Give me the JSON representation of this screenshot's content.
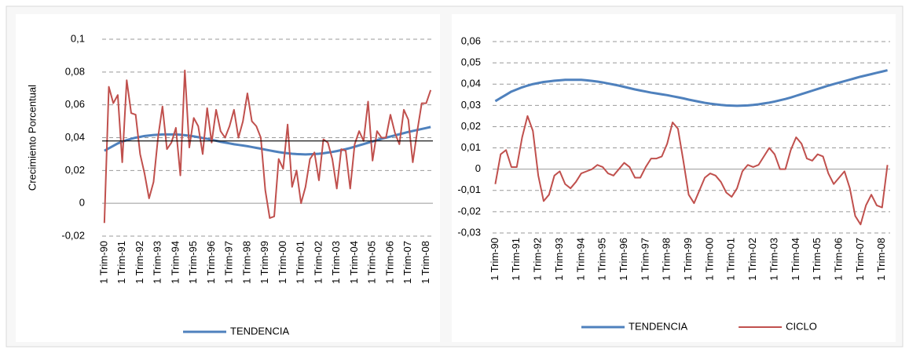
{
  "chart_data": [
    {
      "type": "line",
      "y_label": "Crecimiento Porcentual",
      "categories": [
        "1 Trim-90",
        null,
        null,
        null,
        "1 Trim-91",
        null,
        null,
        null,
        "1 Trim-92",
        null,
        null,
        null,
        "1 Trim-93",
        null,
        null,
        null,
        "1 Trim-94",
        null,
        null,
        null,
        "1 Trim-95",
        null,
        null,
        null,
        "1 Trim-96",
        null,
        null,
        null,
        "1 Trim-97",
        null,
        null,
        null,
        "1 Trim-98",
        null,
        null,
        null,
        "1 Trim-99",
        null,
        null,
        null,
        "1 Trim-00",
        null,
        null,
        null,
        "1 Trim-01",
        null,
        null,
        null,
        "1 Trim-02",
        null,
        null,
        null,
        "1 Trim-03",
        null,
        null,
        null,
        "1 Trim-04",
        null,
        null,
        null,
        "1 Trim-05",
        null,
        null,
        null,
        "1 Trim-06",
        null,
        null,
        null,
        "1 Trim-07",
        null,
        null,
        null,
        "1 Trim-08",
        null
      ],
      "series": [
        {
          "name": "TENDENCIA",
          "color": "#4f81bd",
          "values": [
            0.032,
            0.0335,
            0.035,
            0.0365,
            0.0375,
            0.0385,
            0.0393,
            0.04,
            0.0405,
            0.041,
            0.0413,
            0.0416,
            0.0418,
            0.042,
            0.042,
            0.042,
            0.042,
            0.0418,
            0.0415,
            0.0412,
            0.0408,
            0.0403,
            0.0398,
            0.0393,
            0.0387,
            0.0381,
            0.0375,
            0.037,
            0.0365,
            0.036,
            0.0356,
            0.0352,
            0.0348,
            0.0343,
            0.0338,
            0.0333,
            0.0327,
            0.0322,
            0.0317,
            0.0312,
            0.0308,
            0.0305,
            0.0302,
            0.03,
            0.0299,
            0.0298,
            0.0299,
            0.03,
            0.0302,
            0.0305,
            0.0309,
            0.0313,
            0.0318,
            0.0324,
            0.033,
            0.0337,
            0.0345,
            0.0353,
            0.0361,
            0.0369,
            0.0377,
            0.0385,
            0.0393,
            0.04,
            0.0407,
            0.0414,
            0.0421,
            0.0428,
            0.0435,
            0.0441,
            0.0447,
            0.0453,
            0.0459,
            0.0465
          ]
        },
        {
          "color": "#c0504d",
          "values": [
            -0.012,
            0.071,
            0.061,
            0.066,
            0.025,
            0.075,
            0.055,
            0.054,
            0.03,
            0.018,
            0.003,
            0.013,
            0.04,
            0.059,
            0.033,
            0.037,
            0.046,
            0.017,
            0.081,
            0.034,
            0.052,
            0.047,
            0.03,
            0.058,
            0.037,
            0.057,
            0.044,
            0.04,
            0.047,
            0.057,
            0.04,
            0.05,
            0.067,
            0.05,
            0.047,
            0.04,
            0.008,
            -0.009,
            -0.008,
            0.027,
            0.021,
            0.048,
            0.01,
            0.02,
            0,
            0.01,
            0.027,
            0.031,
            0.014,
            0.039,
            0.037,
            0.027,
            0.009,
            0.033,
            0.032,
            0.009,
            0.036,
            0.044,
            0.038,
            0.062,
            0.026,
            0.044,
            0.04,
            0.04,
            0.054,
            0.043,
            0.036,
            0.057,
            0.051,
            0.025,
            0.044,
            0.061,
            0.061,
            0.069
          ]
        }
      ],
      "reference_line": {
        "value": 0.038,
        "color": "#000000"
      },
      "ylim": [
        -0.02,
        0.1
      ],
      "yticks": [
        {
          "value": -0.02,
          "label": "-0,02"
        },
        0,
        {
          "value": 0.02,
          "label": "0,02"
        },
        {
          "value": 0.04,
          "label": "0,04"
        },
        {
          "value": 0.06,
          "label": "0,06"
        },
        {
          "value": 0.08,
          "label": "0,08"
        },
        {
          "value": 0.1,
          "label": "0,1"
        }
      ],
      "grid": true
    },
    {
      "type": "line",
      "categories": [
        "1 Trim-90",
        null,
        null,
        null,
        "1 Trim-91",
        null,
        null,
        null,
        "1 Trim-92",
        null,
        null,
        null,
        "1 Trim-93",
        null,
        null,
        null,
        "1 Trim-94",
        null,
        null,
        null,
        "1 Trim-95",
        null,
        null,
        null,
        "1 Trim-96",
        null,
        null,
        null,
        "1 Trim-97",
        null,
        null,
        null,
        "1 Trim-98",
        null,
        null,
        null,
        "1 Trim-99",
        null,
        null,
        null,
        "1 Trim-00",
        null,
        null,
        null,
        "1 Trim-01",
        null,
        null,
        null,
        "1 Trim-02",
        null,
        null,
        null,
        "1 Trim-03",
        null,
        null,
        null,
        "1 Trim-04",
        null,
        null,
        null,
        "1 Trim-05",
        null,
        null,
        null,
        "1 Trim-06",
        null,
        null,
        null,
        "1 Trim-07",
        null,
        null,
        null,
        "1 Trim-08",
        null
      ],
      "series": [
        {
          "name": "TENDENCIA",
          "color": "#4f81bd",
          "values": [
            0.032,
            0.0335,
            0.035,
            0.0365,
            0.0375,
            0.0385,
            0.0393,
            0.04,
            0.0405,
            0.041,
            0.0413,
            0.0416,
            0.0418,
            0.042,
            0.042,
            0.042,
            0.042,
            0.0418,
            0.0415,
            0.0412,
            0.0408,
            0.0403,
            0.0398,
            0.0393,
            0.0387,
            0.0381,
            0.0375,
            0.037,
            0.0365,
            0.036,
            0.0356,
            0.0352,
            0.0348,
            0.0343,
            0.0338,
            0.0333,
            0.0327,
            0.0322,
            0.0317,
            0.0312,
            0.0308,
            0.0305,
            0.0302,
            0.03,
            0.0299,
            0.0298,
            0.0299,
            0.03,
            0.0302,
            0.0305,
            0.0309,
            0.0313,
            0.0318,
            0.0324,
            0.033,
            0.0337,
            0.0345,
            0.0353,
            0.0361,
            0.0369,
            0.0377,
            0.0385,
            0.0393,
            0.04,
            0.0407,
            0.0414,
            0.0421,
            0.0428,
            0.0435,
            0.0441,
            0.0447,
            0.0453,
            0.0459,
            0.0465
          ]
        },
        {
          "name": "CICLO",
          "color": "#c0504d",
          "values": [
            -0.007,
            0.007,
            0.009,
            0.001,
            0.001,
            0.015,
            0.025,
            0.018,
            -0.003,
            -0.015,
            -0.012,
            -0.003,
            -0.001,
            -0.007,
            -0.009,
            -0.006,
            -0.002,
            -0.001,
            0,
            0.002,
            0.001,
            -0.002,
            -0.003,
            0,
            0.003,
            0.001,
            -0.004,
            -0.004,
            0.001,
            0.005,
            0.005,
            0.006,
            0.012,
            0.022,
            0.019,
            0.004,
            -0.012,
            -0.016,
            -0.01,
            -0.004,
            -0.002,
            -0.003,
            -0.006,
            -0.011,
            -0.013,
            -0.009,
            -0.001,
            0.002,
            0.001,
            0.002,
            0.006,
            0.01,
            0.007,
            0,
            0,
            0.009,
            0.015,
            0.012,
            0.005,
            0.004,
            0.007,
            0.006,
            -0.002,
            -0.007,
            -0.004,
            -0.001,
            -0.009,
            -0.022,
            -0.026,
            -0.017,
            -0.012,
            -0.017,
            -0.018,
            0.002
          ]
        }
      ],
      "ylim": [
        -0.03,
        0.06
      ],
      "yticks": [
        {
          "value": -0.03,
          "label": "-0,03"
        },
        {
          "value": -0.02,
          "label": "-0,02"
        },
        {
          "value": -0.01,
          "label": "-0,01"
        },
        0,
        {
          "value": 0.01,
          "label": "0,01"
        },
        {
          "value": 0.02,
          "label": "0,02"
        },
        {
          "value": 0.03,
          "label": "0,03"
        },
        {
          "value": 0.04,
          "label": "0,04"
        },
        {
          "value": 0.05,
          "label": "0,05"
        },
        {
          "value": 0.06,
          "label": "0,06"
        }
      ],
      "grid": true
    }
  ]
}
